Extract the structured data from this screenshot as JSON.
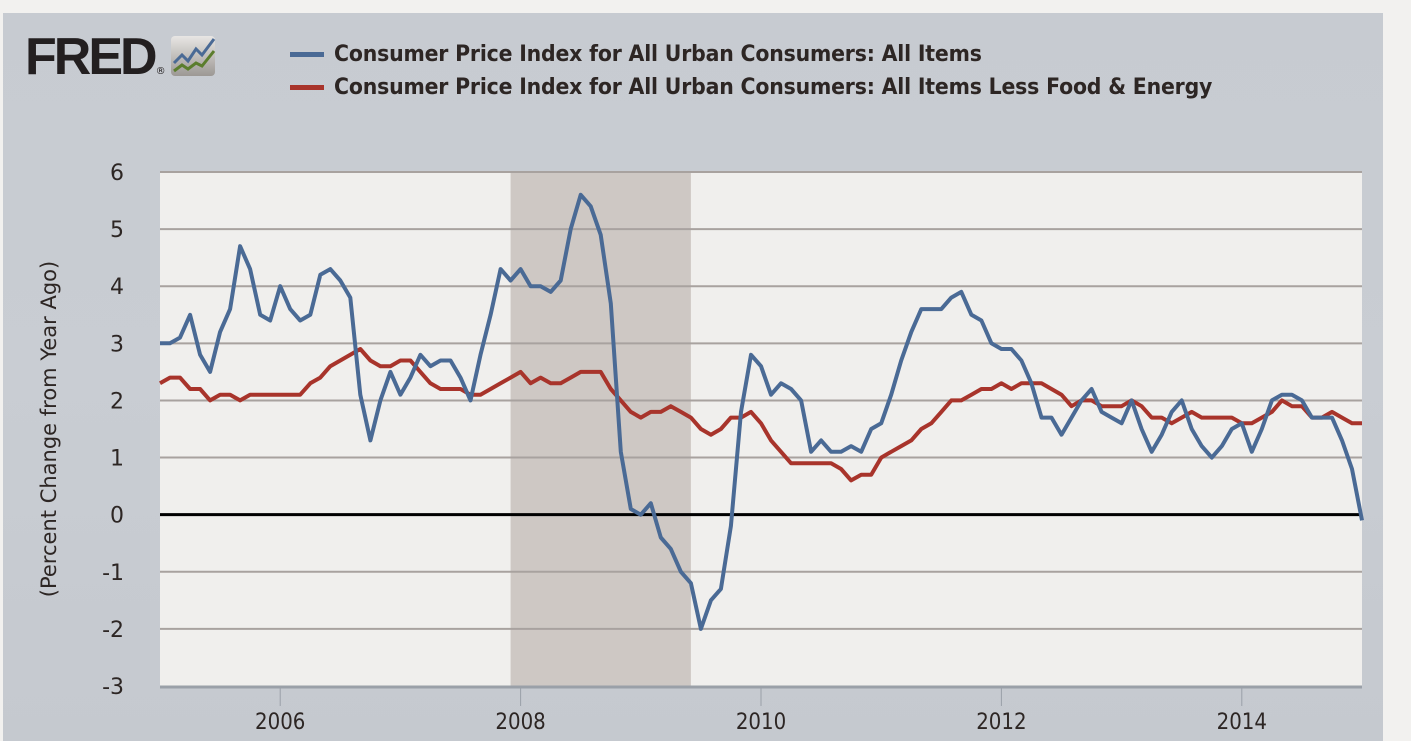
{
  "brand": {
    "logo_text": "FRED",
    "registered_mark": "®",
    "logo_icon": "line-chart-icon"
  },
  "legend": [
    {
      "label": "Consumer Price Index for All Urban Consumers: All Items",
      "color": "#4a6a95"
    },
    {
      "label": "Consumer Price Index for All Urban Consumers: All Items Less Food & Energy",
      "color": "#a8342b"
    }
  ],
  "colors": {
    "series_all_items": "#4a6a95",
    "series_core": "#a8342b",
    "recession_shading": "#cec8c4",
    "plot_background": "#f0efed",
    "grid": "#a8a29f",
    "zero_line": "#000000",
    "frame_background": "#c8ccd2"
  },
  "chart_data": {
    "type": "line",
    "title": "",
    "xlabel": "",
    "ylabel": "(Percent Change from Year Ago)",
    "ylim": [
      -3,
      6
    ],
    "yticks": [
      6,
      5,
      4,
      3,
      2,
      1,
      0,
      -1,
      -2,
      -3
    ],
    "xlim": [
      "2005-01",
      "2015-01"
    ],
    "xticks": [
      "2006",
      "2008",
      "2010",
      "2012",
      "2014"
    ],
    "grid": true,
    "zero_line": true,
    "legend_position": "top",
    "recessions": [
      {
        "start": "2007-12",
        "end": "2009-06"
      }
    ],
    "x_start": "2005-01",
    "x_frequency": "monthly",
    "series": [
      {
        "name": "Consumer Price Index for All Urban Consumers: All Items",
        "values": [
          3.0,
          3.0,
          3.1,
          3.5,
          2.8,
          2.5,
          3.2,
          3.6,
          4.7,
          4.3,
          3.5,
          3.4,
          4.0,
          3.6,
          3.4,
          3.5,
          4.2,
          4.3,
          4.1,
          3.8,
          2.1,
          1.3,
          2.0,
          2.5,
          2.1,
          2.4,
          2.8,
          2.6,
          2.7,
          2.7,
          2.4,
          2.0,
          2.8,
          3.5,
          4.3,
          4.1,
          4.3,
          4.0,
          4.0,
          3.9,
          4.1,
          5.0,
          5.6,
          5.4,
          4.9,
          3.7,
          1.1,
          0.1,
          0.0,
          0.2,
          -0.4,
          -0.6,
          -1.0,
          -1.2,
          -2.0,
          -1.5,
          -1.3,
          -0.2,
          1.8,
          2.8,
          2.6,
          2.1,
          2.3,
          2.2,
          2.0,
          1.1,
          1.3,
          1.1,
          1.1,
          1.2,
          1.1,
          1.5,
          1.6,
          2.1,
          2.7,
          3.2,
          3.6,
          3.6,
          3.6,
          3.8,
          3.9,
          3.5,
          3.4,
          3.0,
          2.9,
          2.9,
          2.7,
          2.3,
          1.7,
          1.7,
          1.4,
          1.7,
          2.0,
          2.2,
          1.8,
          1.7,
          1.6,
          2.0,
          1.5,
          1.1,
          1.4,
          1.8,
          2.0,
          1.5,
          1.2,
          1.0,
          1.2,
          1.5,
          1.6,
          1.1,
          1.5,
          2.0,
          2.1,
          2.1,
          2.0,
          1.7,
          1.7,
          1.7,
          1.3,
          0.8,
          -0.1
        ]
      },
      {
        "name": "Consumer Price Index for All Urban Consumers: All Items Less Food & Energy",
        "values": [
          2.3,
          2.4,
          2.4,
          2.2,
          2.2,
          2.0,
          2.1,
          2.1,
          2.0,
          2.1,
          2.1,
          2.1,
          2.1,
          2.1,
          2.1,
          2.3,
          2.4,
          2.6,
          2.7,
          2.8,
          2.9,
          2.7,
          2.6,
          2.6,
          2.7,
          2.7,
          2.5,
          2.3,
          2.2,
          2.2,
          2.2,
          2.1,
          2.1,
          2.2,
          2.3,
          2.4,
          2.5,
          2.3,
          2.4,
          2.3,
          2.3,
          2.4,
          2.5,
          2.5,
          2.5,
          2.2,
          2.0,
          1.8,
          1.7,
          1.8,
          1.8,
          1.9,
          1.8,
          1.7,
          1.5,
          1.4,
          1.5,
          1.7,
          1.7,
          1.8,
          1.6,
          1.3,
          1.1,
          0.9,
          0.9,
          0.9,
          0.9,
          0.9,
          0.8,
          0.6,
          0.7,
          0.7,
          1.0,
          1.1,
          1.2,
          1.3,
          1.5,
          1.6,
          1.8,
          2.0,
          2.0,
          2.1,
          2.2,
          2.2,
          2.3,
          2.2,
          2.3,
          2.3,
          2.3,
          2.2,
          2.1,
          1.9,
          2.0,
          2.0,
          1.9,
          1.9,
          1.9,
          2.0,
          1.9,
          1.7,
          1.7,
          1.6,
          1.7,
          1.8,
          1.7,
          1.7,
          1.7,
          1.7,
          1.6,
          1.6,
          1.7,
          1.8,
          2.0,
          1.9,
          1.9,
          1.7,
          1.7,
          1.8,
          1.7,
          1.6,
          1.6
        ]
      }
    ]
  }
}
